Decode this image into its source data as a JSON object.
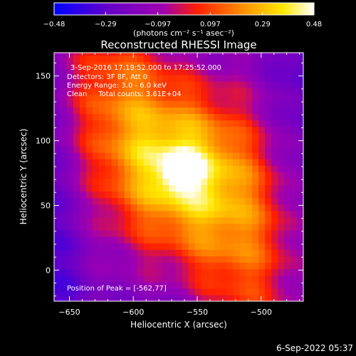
{
  "chart_data": {
    "type": "heatmap",
    "title": "Reconstructed RHESSI Image",
    "xlabel": "Heliocentric X (arcsec)",
    "ylabel": "Heliocentric Y (arcsec)",
    "xlim": [
      -662,
      -467
    ],
    "ylim": [
      -24,
      168
    ],
    "xticks": [
      -650,
      -600,
      -550,
      -500
    ],
    "yticks": [
      0,
      50,
      100,
      150
    ],
    "xtick_labels": [
      "−650",
      "−600",
      "−550",
      "−500"
    ],
    "ytick_labels": [
      "0",
      "50",
      "100",
      "150"
    ],
    "colorbar": {
      "min": -0.48,
      "max": 0.48,
      "ticks": [
        -0.48,
        -0.29,
        -0.097,
        0.097,
        0.29,
        0.48
      ],
      "tick_labels": [
        "−0.48",
        "−0.29",
        "−0.097",
        "0.097",
        "0.29",
        "0.48"
      ],
      "unit_label": "(photons cm⁻² s⁻¹ asec⁻²)",
      "colormap_stops": [
        "#0000ff",
        "#6a00c8",
        "#a000b0",
        "#ff1e00",
        "#ff8c00",
        "#ffe800",
        "#ffffff"
      ]
    },
    "annotations": [
      "3-Sep-2016 17:19:52.000 to 17:25:52.000",
      "Detectors: 3F 8F, Att 0",
      "Energy Range: 3.0 - 6.0 keV",
      "Clean     Total counts: 3.61E+04",
      "Position of Peak = [-562,77]"
    ],
    "peak": {
      "x": -562,
      "y": 77,
      "value": 0.48
    },
    "footer_timestamp": "6-Sep-2022 05:37"
  }
}
